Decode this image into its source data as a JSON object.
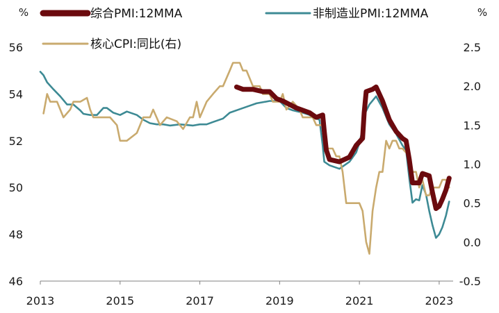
{
  "chart_data": {
    "type": "line",
    "y_left": {
      "unit": "%",
      "ticks": [
        "56",
        "54",
        "52",
        "50",
        "48",
        "46"
      ],
      "range": [
        46,
        56
      ]
    },
    "y_right": {
      "unit": "%",
      "ticks": [
        "2.5",
        "2.0",
        "1.5",
        "1.0",
        "0.5",
        "0.0",
        "-0.5"
      ],
      "range": [
        -0.5,
        2.5
      ]
    },
    "x": {
      "ticks": [
        "2013",
        "2015",
        "2017",
        "2019",
        "2021",
        "2023"
      ],
      "range": [
        2013.0,
        2023.35
      ]
    },
    "legend_placement": "top",
    "grid": false,
    "series": [
      {
        "name": "综合PMI:12MMA",
        "axis": "left",
        "color": "#6b0a0e",
        "points": [
          [
            2017.92,
            54.3
          ],
          [
            2018.08,
            54.2
          ],
          [
            2018.33,
            54.2
          ],
          [
            2018.58,
            54.1
          ],
          [
            2018.75,
            54.1
          ],
          [
            2018.92,
            53.8
          ],
          [
            2019.08,
            53.7
          ],
          [
            2019.42,
            53.4
          ],
          [
            2019.75,
            53.2
          ],
          [
            2019.92,
            53.0
          ],
          [
            2020.08,
            53.1
          ],
          [
            2020.12,
            52.4
          ],
          [
            2020.17,
            51.6
          ],
          [
            2020.25,
            51.2
          ],
          [
            2020.5,
            51.1
          ],
          [
            2020.75,
            51.3
          ],
          [
            2020.92,
            51.8
          ],
          [
            2021.08,
            52.1
          ],
          [
            2021.12,
            53.2
          ],
          [
            2021.17,
            54.1
          ],
          [
            2021.33,
            54.2
          ],
          [
            2021.42,
            54.3
          ],
          [
            2021.58,
            53.7
          ],
          [
            2021.75,
            52.9
          ],
          [
            2021.92,
            52.4
          ],
          [
            2022.08,
            52.1
          ],
          [
            2022.17,
            52.0
          ],
          [
            2022.25,
            51.2
          ],
          [
            2022.33,
            50.2
          ],
          [
            2022.5,
            50.2
          ],
          [
            2022.58,
            50.6
          ],
          [
            2022.75,
            50.5
          ],
          [
            2022.83,
            49.8
          ],
          [
            2022.92,
            49.1
          ],
          [
            2023.0,
            49.2
          ],
          [
            2023.08,
            49.5
          ],
          [
            2023.17,
            49.9
          ],
          [
            2023.25,
            50.4
          ]
        ]
      },
      {
        "name": "非制造业PMI:12MMA",
        "axis": "left",
        "color": "#3d8a94",
        "points": [
          [
            2013.0,
            54.95
          ],
          [
            2013.08,
            54.8
          ],
          [
            2013.17,
            54.5
          ],
          [
            2013.33,
            54.2
          ],
          [
            2013.5,
            53.9
          ],
          [
            2013.67,
            53.55
          ],
          [
            2013.83,
            53.55
          ],
          [
            2014.0,
            53.3
          ],
          [
            2014.08,
            53.15
          ],
          [
            2014.25,
            53.1
          ],
          [
            2014.42,
            53.1
          ],
          [
            2014.58,
            53.4
          ],
          [
            2014.67,
            53.4
          ],
          [
            2014.83,
            53.2
          ],
          [
            2015.0,
            53.1
          ],
          [
            2015.17,
            53.25
          ],
          [
            2015.42,
            53.1
          ],
          [
            2015.58,
            52.9
          ],
          [
            2015.75,
            52.75
          ],
          [
            2015.92,
            52.7
          ],
          [
            2016.08,
            52.7
          ],
          [
            2016.25,
            52.65
          ],
          [
            2016.5,
            52.7
          ],
          [
            2016.83,
            52.65
          ],
          [
            2017.0,
            52.7
          ],
          [
            2017.17,
            52.7
          ],
          [
            2017.33,
            52.8
          ],
          [
            2017.58,
            52.95
          ],
          [
            2017.75,
            53.2
          ],
          [
            2018.0,
            53.35
          ],
          [
            2018.25,
            53.5
          ],
          [
            2018.42,
            53.6
          ],
          [
            2018.75,
            53.7
          ],
          [
            2019.0,
            53.7
          ],
          [
            2019.17,
            53.4
          ],
          [
            2019.33,
            53.3
          ],
          [
            2019.58,
            53.2
          ],
          [
            2019.75,
            53.1
          ],
          [
            2019.92,
            52.95
          ],
          [
            2020.0,
            52.9
          ],
          [
            2020.08,
            51.8
          ],
          [
            2020.12,
            51.1
          ],
          [
            2020.25,
            50.95
          ],
          [
            2020.5,
            50.8
          ],
          [
            2020.75,
            51.1
          ],
          [
            2020.92,
            51.5
          ],
          [
            2021.0,
            51.9
          ],
          [
            2021.08,
            52.5
          ],
          [
            2021.12,
            53.1
          ],
          [
            2021.25,
            53.55
          ],
          [
            2021.42,
            53.9
          ],
          [
            2021.58,
            53.4
          ],
          [
            2021.75,
            52.7
          ],
          [
            2021.92,
            52.3
          ],
          [
            2022.08,
            51.8
          ],
          [
            2022.17,
            51.6
          ],
          [
            2022.25,
            50.4
          ],
          [
            2022.33,
            49.35
          ],
          [
            2022.42,
            49.5
          ],
          [
            2022.5,
            49.45
          ],
          [
            2022.58,
            50.1
          ],
          [
            2022.67,
            49.7
          ],
          [
            2022.75,
            49.0
          ],
          [
            2022.83,
            48.4
          ],
          [
            2022.92,
            47.85
          ],
          [
            2023.0,
            48.0
          ],
          [
            2023.08,
            48.3
          ],
          [
            2023.17,
            48.8
          ],
          [
            2023.25,
            49.4
          ]
        ]
      },
      {
        "name": "核心CPI:同比(右)",
        "axis": "right",
        "color": "#c9aa6e",
        "points": [
          [
            2013.08,
            1.65
          ],
          [
            2013.17,
            1.9
          ],
          [
            2013.25,
            1.8
          ],
          [
            2013.42,
            1.8
          ],
          [
            2013.58,
            1.6
          ],
          [
            2013.75,
            1.7
          ],
          [
            2013.83,
            1.8
          ],
          [
            2014.0,
            1.8
          ],
          [
            2014.17,
            1.85
          ],
          [
            2014.25,
            1.7
          ],
          [
            2014.33,
            1.6
          ],
          [
            2014.5,
            1.6
          ],
          [
            2014.75,
            1.6
          ],
          [
            2014.92,
            1.5
          ],
          [
            2015.0,
            1.3
          ],
          [
            2015.17,
            1.3
          ],
          [
            2015.42,
            1.4
          ],
          [
            2015.58,
            1.6
          ],
          [
            2015.75,
            1.6
          ],
          [
            2015.83,
            1.7
          ],
          [
            2016.0,
            1.5
          ],
          [
            2016.17,
            1.6
          ],
          [
            2016.42,
            1.55
          ],
          [
            2016.5,
            1.5
          ],
          [
            2016.58,
            1.45
          ],
          [
            2016.75,
            1.6
          ],
          [
            2016.83,
            1.6
          ],
          [
            2016.92,
            1.8
          ],
          [
            2017.0,
            1.6
          ],
          [
            2017.17,
            1.8
          ],
          [
            2017.33,
            1.9
          ],
          [
            2017.5,
            2.0
          ],
          [
            2017.58,
            2.0
          ],
          [
            2017.75,
            2.2
          ],
          [
            2017.83,
            2.3
          ],
          [
            2018.0,
            2.3
          ],
          [
            2018.08,
            2.2
          ],
          [
            2018.17,
            2.2
          ],
          [
            2018.25,
            2.1
          ],
          [
            2018.33,
            2.0
          ],
          [
            2018.5,
            2.0
          ],
          [
            2018.58,
            1.9
          ],
          [
            2018.75,
            1.9
          ],
          [
            2018.83,
            1.8
          ],
          [
            2019.0,
            1.8
          ],
          [
            2019.08,
            1.9
          ],
          [
            2019.17,
            1.7
          ],
          [
            2019.33,
            1.8
          ],
          [
            2019.5,
            1.7
          ],
          [
            2019.58,
            1.6
          ],
          [
            2019.83,
            1.6
          ],
          [
            2019.92,
            1.5
          ],
          [
            2020.0,
            1.5
          ],
          [
            2020.08,
            1.5
          ],
          [
            2020.17,
            1.2
          ],
          [
            2020.33,
            1.2
          ],
          [
            2020.42,
            1.1
          ],
          [
            2020.5,
            1.1
          ],
          [
            2020.58,
            0.9
          ],
          [
            2020.67,
            0.5
          ],
          [
            2020.92,
            0.5
          ],
          [
            2021.0,
            0.5
          ],
          [
            2021.08,
            0.4
          ],
          [
            2021.17,
            0.0
          ],
          [
            2021.25,
            -0.15
          ],
          [
            2021.33,
            0.4
          ],
          [
            2021.42,
            0.7
          ],
          [
            2021.5,
            0.9
          ],
          [
            2021.58,
            0.9
          ],
          [
            2021.67,
            1.3
          ],
          [
            2021.75,
            1.2
          ],
          [
            2021.83,
            1.3
          ],
          [
            2021.92,
            1.3
          ],
          [
            2022.0,
            1.2
          ],
          [
            2022.08,
            1.2
          ],
          [
            2022.25,
            1.1
          ],
          [
            2022.33,
            0.9
          ],
          [
            2022.42,
            0.9
          ],
          [
            2022.5,
            0.7
          ],
          [
            2022.58,
            0.8
          ],
          [
            2022.67,
            0.6
          ],
          [
            2022.75,
            0.6
          ],
          [
            2022.83,
            0.7
          ],
          [
            2022.92,
            0.7
          ],
          [
            2023.0,
            0.7
          ],
          [
            2023.08,
            0.8
          ],
          [
            2023.17,
            0.8
          ],
          [
            2023.25,
            0.7
          ]
        ]
      }
    ]
  }
}
